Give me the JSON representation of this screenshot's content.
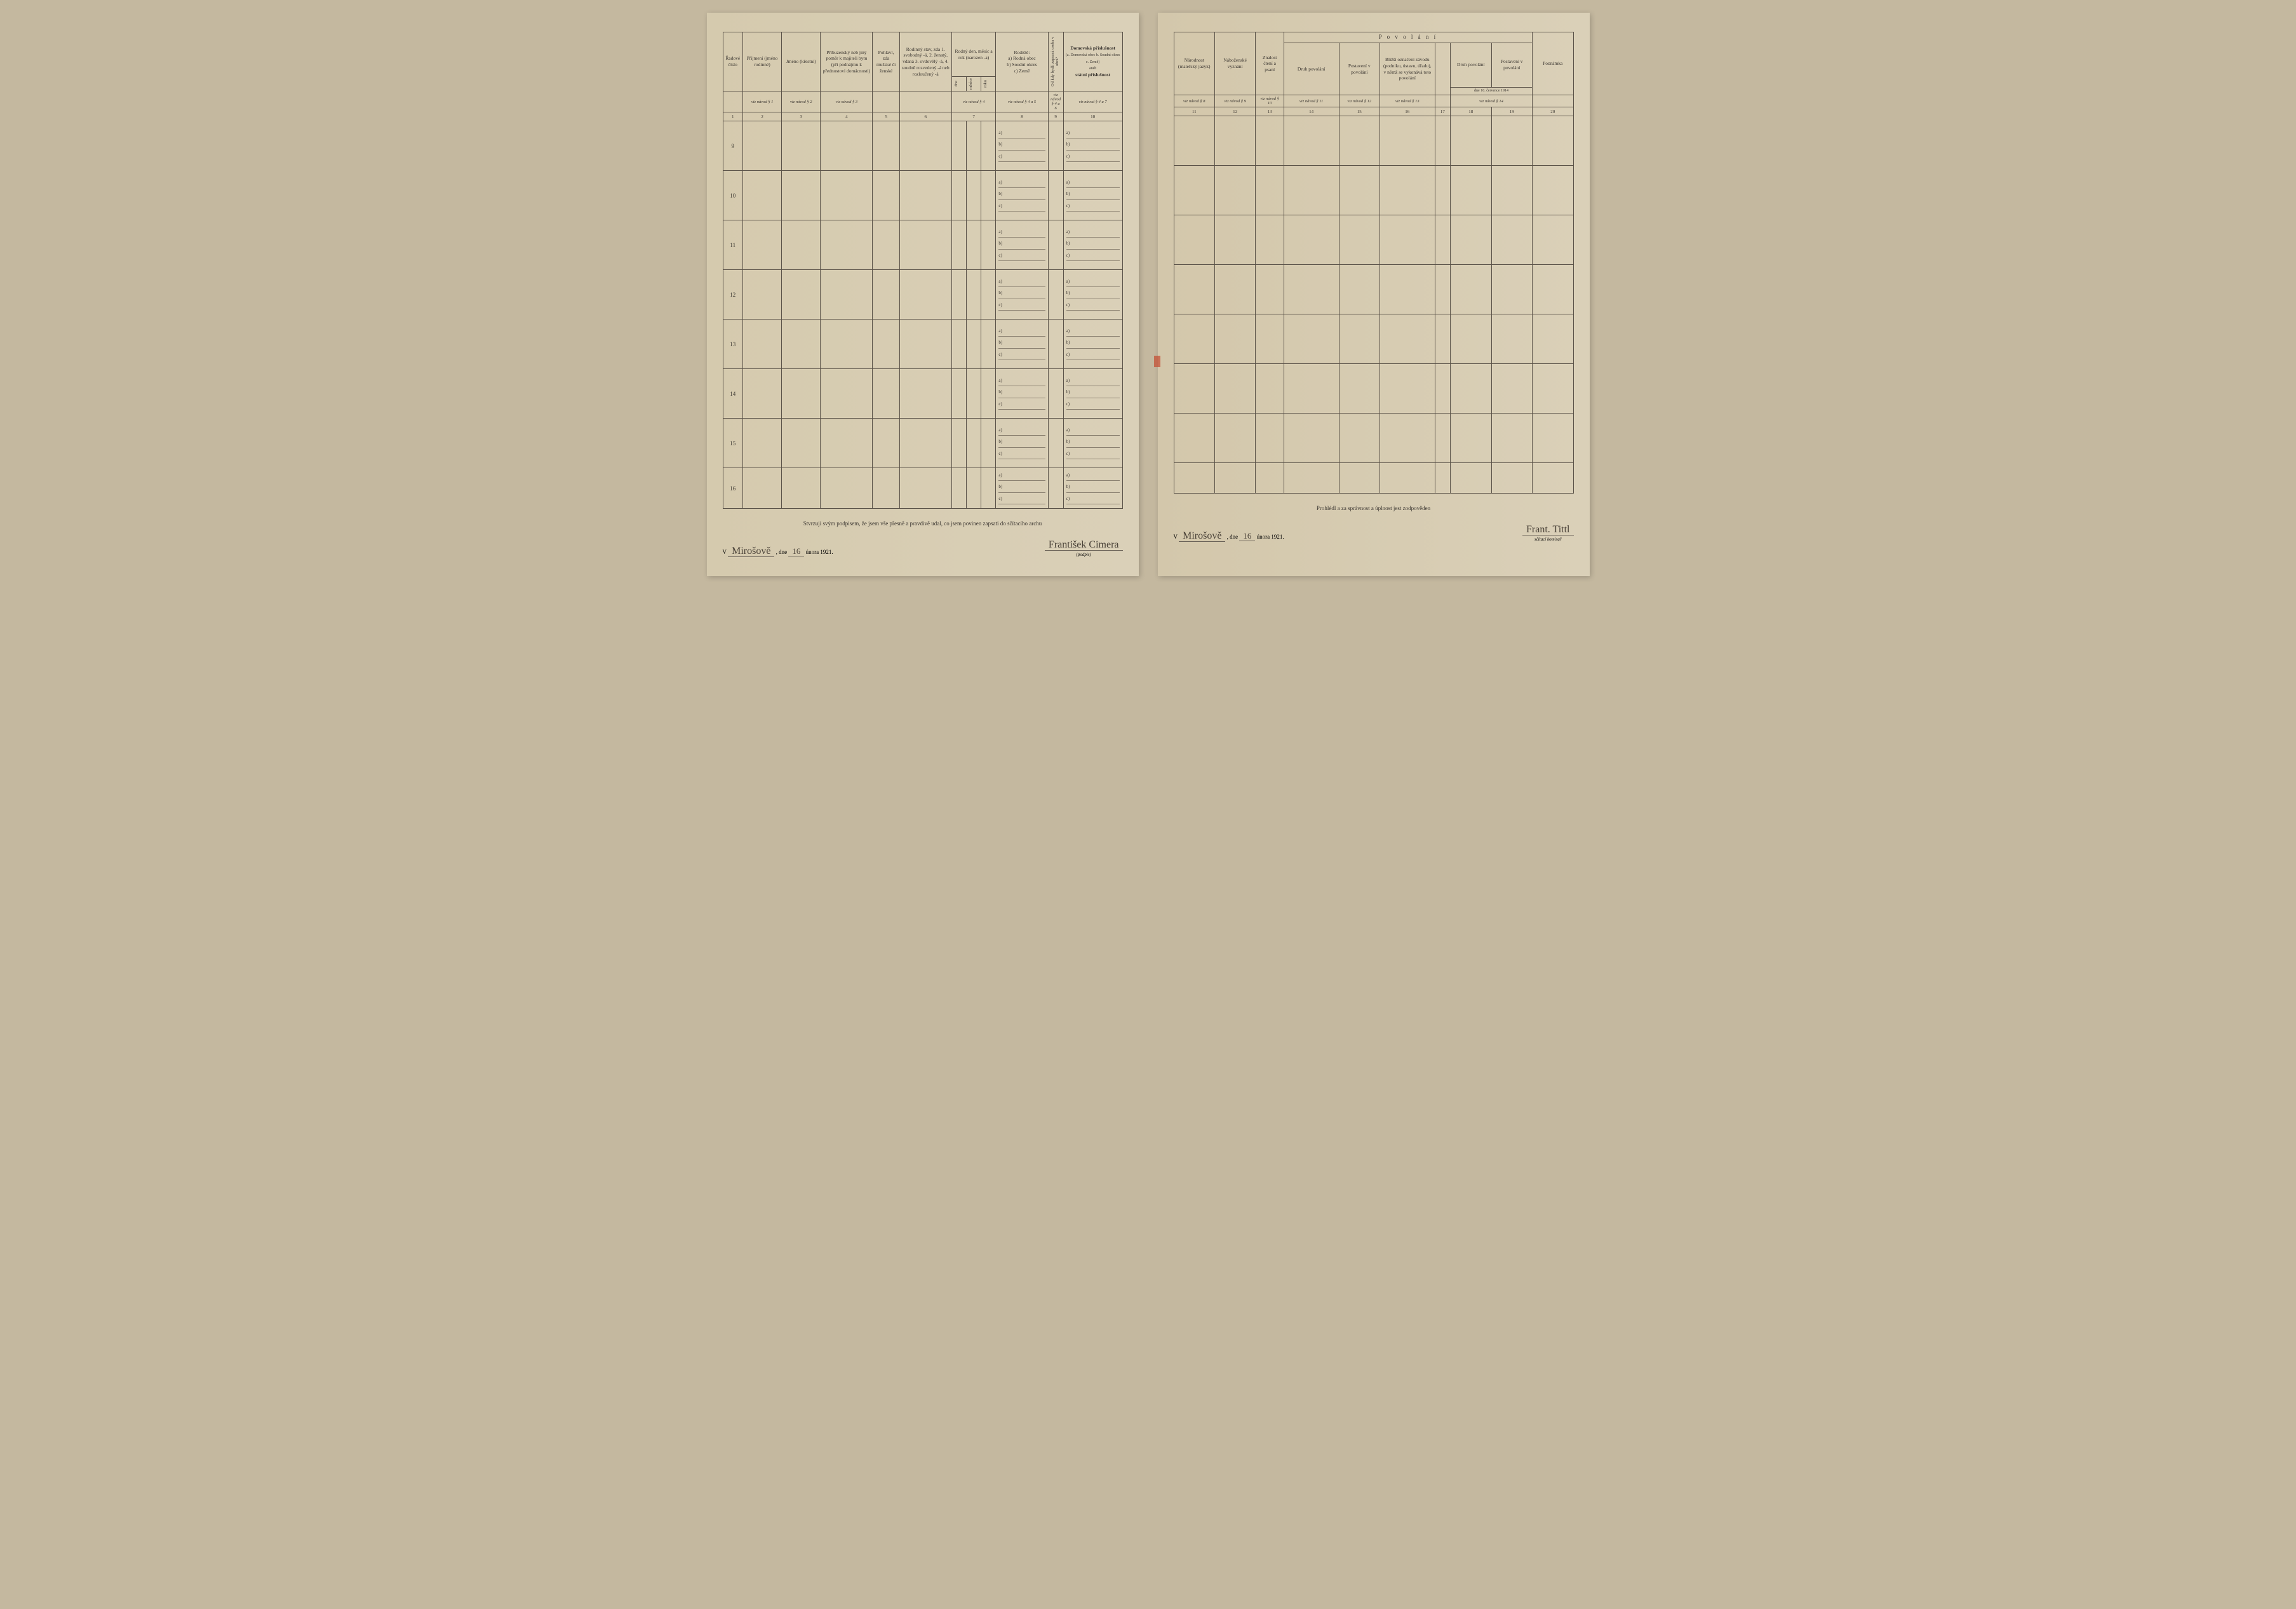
{
  "left": {
    "headers": {
      "col1": "Řadové číslo",
      "col2": "Příjmení (jméno rodinné)",
      "col3": "Jméno (křestní)",
      "col4": "Příbuzenský neb jiný poměr k majiteli bytu (při podnájmu k přednostovi domácnosti)",
      "col5": "Pohlaví, zda mužské či ženské",
      "col6": "Rodinný stav, zda 1. svobodný -á, 2. ženatý, vdaná 3. ovdovělý -á, 4. soudně rozvedený -á neb rozloučený -á",
      "col7": "Rodný den, měsíc a rok (narozen -a)",
      "col7a": "dne",
      "col7b": "měsíce",
      "col7c": "roku",
      "col8": "Rodiště:",
      "col8a": "a) Rodná obec",
      "col8b": "b) Soudní okres",
      "col8c": "c) Země",
      "col9": "Od kdy bydlí zapsaná osoba v obci?",
      "col10": "Domovská příslušnost",
      "col10sub": "(a. Domovská obec b. Soudní okres c. Země)",
      "col10sub2": "aneb",
      "col10sub3": "státní příslušnost"
    },
    "refs": {
      "r2": "viz návod § 1",
      "r3": "viz návod § 2",
      "r4": "viz návod § 3",
      "r7": "viz návod § 4",
      "r8": "viz návod § 4 a 5",
      "r9": "viz návod § 4 a 6",
      "r10": "viz návod § 4 a 7"
    },
    "nums": [
      "1",
      "2",
      "3",
      "4",
      "5",
      "6",
      "7",
      "8",
      "9",
      "10"
    ],
    "rownums": [
      "9",
      "10",
      "11",
      "12",
      "13",
      "14",
      "15",
      "16"
    ],
    "abc": {
      "a": "a)",
      "b": "b)",
      "c": "c)"
    },
    "footer": "Stvrzuji svým podpisem, že jsem vše přesně a pravdivě udal, co jsem povinen zapsati do sčítacího archu",
    "place": "Mirošově",
    "date_prefix": ", dne",
    "date_day": "16",
    "date_suffix": "února 1921.",
    "signature": "František Cimera",
    "sig_label": "(podpis)",
    "v_prefix": "V"
  },
  "right": {
    "headers": {
      "col11": "Národnost (mateřský jazyk)",
      "col12": "Náboženské vyznání",
      "col13": "Znalost čtení a psaní",
      "povolani": "P o v o l á n í",
      "col14": "Druh povolání",
      "col15": "Postavení v povolání",
      "col16": "Bližší označení závodu (podniku, ústavu, úřadu), v němž se vykonává toto povolání",
      "col17": "",
      "col18": "Druh povolání",
      "col19": "Postavení v povolání",
      "col18_19_sub": "dne 16. července 1914",
      "col20": "Poznámka"
    },
    "refs": {
      "r11": "viz návod § 8",
      "r12": "viz návod § 9",
      "r13": "viz návod § 10",
      "r14": "viz návod § 11",
      "r15": "viz návod § 12",
      "r16": "viz návod § 13",
      "r18_19": "viz návod § 14"
    },
    "nums": [
      "11",
      "12",
      "13",
      "14",
      "15",
      "16",
      "17",
      "18",
      "19",
      "20"
    ],
    "footer": "Prohlédl a za správnost a úplnost jest zodpověden",
    "place": "Mirošově",
    "date_prefix": ", dne",
    "date_day": "16",
    "date_suffix": "února 1921.",
    "signature": "Frant. Tittl",
    "sig_label": "sčítací komisař",
    "v_prefix": "V"
  },
  "colors": {
    "paper": "#d8cdb5",
    "ink": "#3a3530",
    "border": "#5a5248",
    "red_mark": "#c44a2f"
  }
}
